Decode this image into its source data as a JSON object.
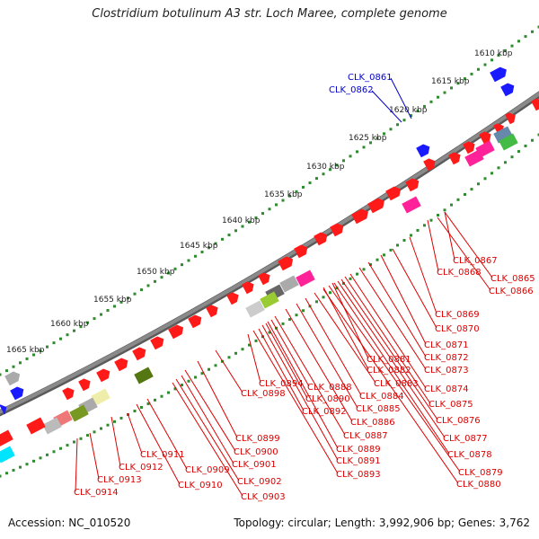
{
  "header": {
    "title": "Clostridium botulinum A3 str. Loch Maree, complete genome"
  },
  "footer": {
    "accession": "Accession: NC_010520",
    "summary": "Topology: circular; Length: 3,992,906 bp; Genes: 3,762"
  },
  "ruler_labels": [
    "1610 kbp",
    "1615 kbp",
    "1620 kbp",
    "1625 kbp",
    "1630 kbp",
    "1635 kbp",
    "1640 kbp",
    "1645 kbp",
    "1650 kbp",
    "1655 kbp",
    "1660 kbp",
    "1665 kbp"
  ],
  "colors": {
    "ruler": "#2e8b2e",
    "backbone": "#8a8a8a",
    "gene_default": "#ff0000",
    "forward_strand_label": "#0000cc",
    "reverse_strand_label": "#dd0000"
  },
  "forward_labels": [
    "CLK_0861",
    "CLK_0862"
  ],
  "reverse_labels": [
    "CLK_0865",
    "CLK_0866",
    "CLK_0867",
    "CLK_0868",
    "CLK_0869",
    "CLK_0870",
    "CLK_0871",
    "CLK_0872",
    "CLK_0873",
    "CLK_0874",
    "CLK_0875",
    "CLK_0876",
    "CLK_0877",
    "CLK_0878",
    "CLK_0879",
    "CLK_0880",
    "CLK_0881",
    "CLK_0882",
    "CLK_0883",
    "CLK_0884",
    "CLK_0885",
    "CLK_0886",
    "CLK_0887",
    "CLK_0888",
    "CLK_0889",
    "CLK_0890",
    "CLK_0891",
    "CLK_0892",
    "CLK_0893",
    "CLK_0894",
    "CLK_0898",
    "CLK_0899",
    "CLK_0900",
    "CLK_0901",
    "CLK_0902",
    "CLK_0903",
    "CLK_0909",
    "CLK_0910",
    "CLK_0911",
    "CLK_0912",
    "CLK_0913",
    "CLK_0914"
  ]
}
